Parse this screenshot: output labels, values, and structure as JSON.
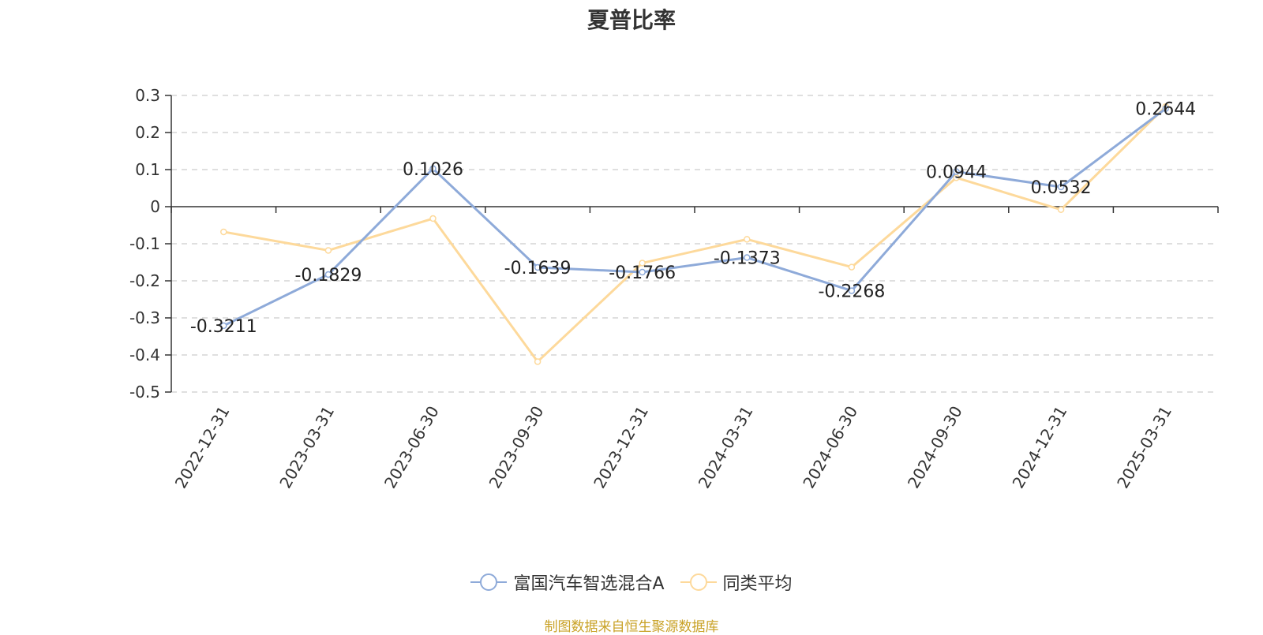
{
  "chart_data": {
    "type": "line",
    "title": "夏普比率",
    "categories": [
      "2022-12-31",
      "2023-03-31",
      "2023-06-30",
      "2023-09-30",
      "2023-12-31",
      "2024-03-31",
      "2024-06-30",
      "2024-09-30",
      "2024-12-31",
      "2025-03-31"
    ],
    "series": [
      {
        "name": "富国汽车智选混合A",
        "color": "#8eaad9",
        "values": [
          -0.3211,
          -0.1829,
          0.1026,
          -0.1639,
          -0.1766,
          -0.1373,
          -0.2268,
          0.0944,
          0.0532,
          0.2644
        ],
        "labels": [
          "-0.3211",
          "-0.1829",
          "0.1026",
          "-0.1639",
          "-0.1766",
          "-0.1373",
          "-0.2268",
          "0.0944",
          "0.0532",
          "0.2644"
        ]
      },
      {
        "name": "同类平均",
        "color": "#fdd99b",
        "values": [
          -0.068,
          -0.118,
          -0.032,
          -0.418,
          -0.152,
          -0.088,
          -0.163,
          0.078,
          -0.008,
          0.27
        ]
      }
    ],
    "ylim": [
      -0.5,
      0.3
    ],
    "yticks": [
      "0.3",
      "0.2",
      "0.1",
      "0",
      "-0.1",
      "-0.2",
      "-0.3",
      "-0.4",
      "-0.5"
    ],
    "grid": true,
    "legend_position": "bottom"
  },
  "legend": [
    {
      "label": "富国汽车智选混合A",
      "color": "#8eaad9"
    },
    {
      "label": "同类平均",
      "color": "#fdd99b"
    }
  ],
  "source": {
    "text": "制图数据来自恒生聚源数据库",
    "color": "#c9a227"
  }
}
